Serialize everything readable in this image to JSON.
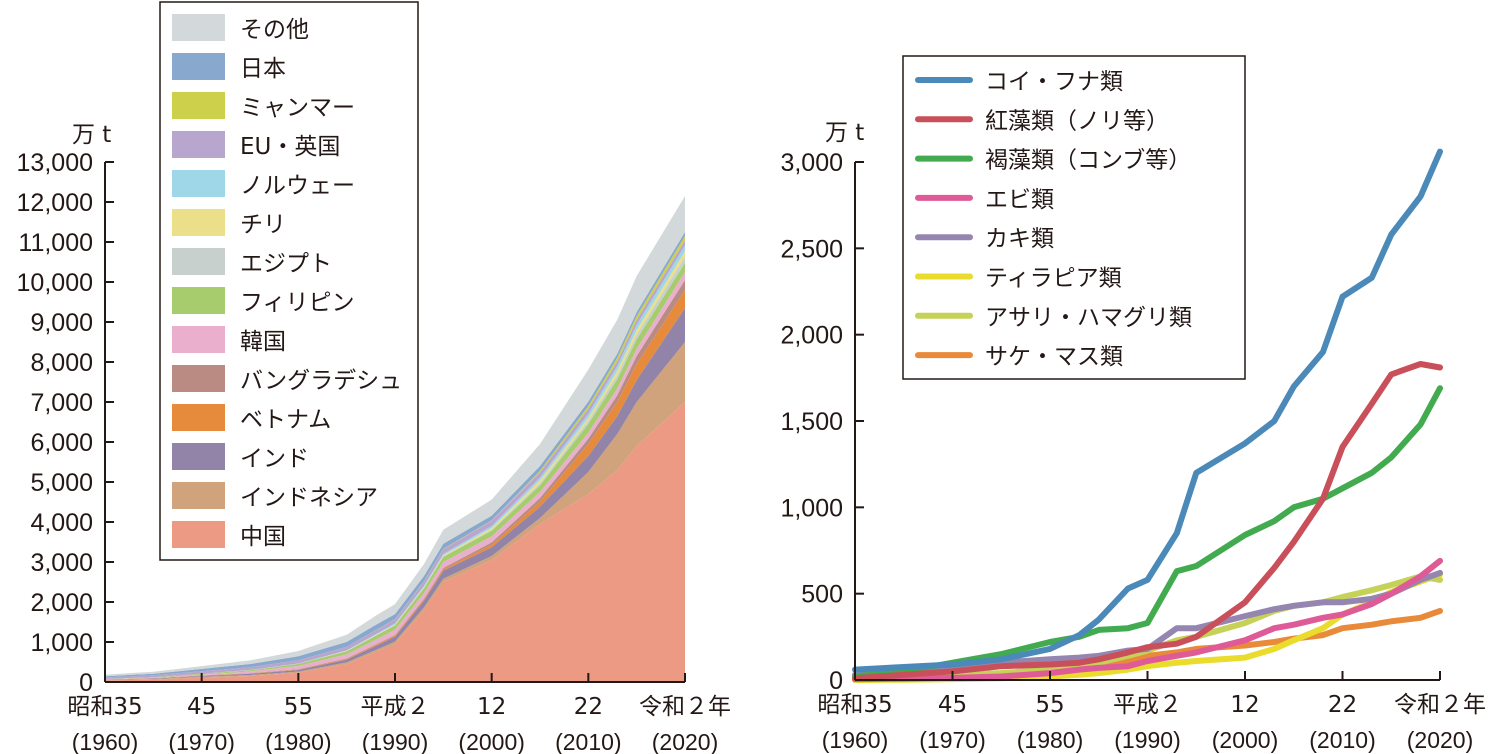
{
  "chart_data": [
    {
      "type": "area",
      "stacked": true,
      "title": "",
      "xlabel": "",
      "ylabel": "万 t",
      "unit_label": "万 t",
      "ylim": [
        0,
        13000
      ],
      "y_ticks": [
        "0",
        "1,000",
        "2,000",
        "3,000",
        "4,000",
        "5,000",
        "6,000",
        "7,000",
        "8,000",
        "9,000",
        "10,000",
        "11,000",
        "12,000",
        "13,000"
      ],
      "x_ticks": [
        {
          "era": "昭和35",
          "year": "(1960)"
        },
        {
          "era": "45",
          "year": "(1970)"
        },
        {
          "era": "55",
          "year": "(1980)"
        },
        {
          "era": "平成２",
          "year": "(1990)"
        },
        {
          "era": "12",
          "year": "(2000)"
        },
        {
          "era": "22",
          "year": "(2010)"
        },
        {
          "era": "令和２年",
          "year": "(2020)"
        }
      ],
      "x": [
        1960,
        1965,
        1970,
        1975,
        1980,
        1985,
        1988,
        1990,
        1993,
        1995,
        2000,
        2005,
        2010,
        2013,
        2015,
        2020
      ],
      "legend_position": "upper-left (inside)",
      "series": [
        {
          "name": "中国",
          "color": "#ec9a84",
          "values": [
            40,
            60,
            110,
            150,
            230,
            450,
            750,
            950,
            1800,
            2500,
            3050,
            3950,
            4700,
            5300,
            5900,
            7000
          ]
        },
        {
          "name": "インドネシア",
          "color": "#d0a37c",
          "values": [
            10,
            15,
            20,
            25,
            30,
            40,
            50,
            60,
            70,
            80,
            100,
            150,
            550,
            900,
            1100,
            1500
          ]
        },
        {
          "name": "インド",
          "color": "#9283a9",
          "values": [
            8,
            12,
            20,
            30,
            40,
            70,
            100,
            120,
            160,
            200,
            220,
            280,
            400,
            450,
            550,
            850
          ]
        },
        {
          "name": "ベトナム",
          "color": "#e68a3c",
          "values": [
            2,
            4,
            6,
            8,
            10,
            15,
            20,
            25,
            30,
            40,
            60,
            130,
            300,
            350,
            400,
            450
          ]
        },
        {
          "name": "バングラデシュ",
          "color": "#b98b82",
          "values": [
            5,
            6,
            8,
            10,
            12,
            15,
            18,
            20,
            25,
            30,
            60,
            90,
            130,
            170,
            200,
            250
          ]
        },
        {
          "name": "韓国",
          "color": "#e9afcd",
          "values": [
            5,
            10,
            20,
            40,
            80,
            100,
            120,
            130,
            140,
            150,
            150,
            150,
            150,
            170,
            180,
            200
          ]
        },
        {
          "name": "フィリピン",
          "color": "#a7cc6e",
          "values": [
            5,
            10,
            20,
            30,
            50,
            80,
            100,
            110,
            120,
            130,
            140,
            170,
            220,
            230,
            240,
            230
          ]
        },
        {
          "name": "エジプト",
          "color": "#c7d0cc",
          "values": [
            1,
            1,
            2,
            3,
            4,
            5,
            6,
            7,
            8,
            10,
            30,
            50,
            80,
            100,
            110,
            150
          ]
        },
        {
          "name": "チリ",
          "color": "#ebdf8a",
          "values": [
            0,
            0,
            0,
            1,
            2,
            5,
            10,
            15,
            20,
            25,
            40,
            70,
            70,
            110,
            120,
            140
          ]
        },
        {
          "name": "ノルウェー",
          "color": "#9fd6e8",
          "values": [
            0,
            0,
            1,
            2,
            5,
            10,
            20,
            25,
            30,
            35,
            50,
            70,
            100,
            120,
            130,
            150
          ]
        },
        {
          "name": "EU・英国",
          "color": "#b9a6cf",
          "values": [
            40,
            50,
            60,
            70,
            80,
            90,
            100,
            100,
            110,
            120,
            130,
            130,
            130,
            120,
            120,
            120
          ]
        },
        {
          "name": "ミャンマー",
          "color": "#cdd04a",
          "values": [
            0,
            0,
            0,
            1,
            2,
            3,
            4,
            5,
            6,
            8,
            10,
            40,
            70,
            90,
            100,
            110
          ]
        },
        {
          "name": "日本",
          "color": "#88a9cd",
          "values": [
            30,
            40,
            60,
            80,
            100,
            120,
            130,
            130,
            130,
            130,
            120,
            120,
            110,
            100,
            100,
            100
          ]
        },
        {
          "name": "その他",
          "color": "#d3d8da",
          "values": [
            40,
            50,
            70,
            90,
            130,
            180,
            230,
            250,
            300,
            350,
            400,
            550,
            800,
            850,
            900,
            900
          ]
        }
      ]
    },
    {
      "type": "line",
      "title": "",
      "xlabel": "",
      "ylabel": "万 t",
      "unit_label": "万 t",
      "ylim": [
        0,
        3000
      ],
      "y_ticks": [
        "0",
        "500",
        "1,000",
        "1,500",
        "2,000",
        "2,500",
        "3,000"
      ],
      "x_ticks": [
        {
          "era": "昭和35",
          "year": "(1960)"
        },
        {
          "era": "45",
          "year": "(1970)"
        },
        {
          "era": "55",
          "year": "(1980)"
        },
        {
          "era": "平成２",
          "year": "(1990)"
        },
        {
          "era": "12",
          "year": "(2000)"
        },
        {
          "era": "22",
          "year": "(2010)"
        },
        {
          "era": "令和２年",
          "year": "(2020)"
        }
      ],
      "x": [
        1960,
        1965,
        1970,
        1975,
        1980,
        1983,
        1985,
        1988,
        1990,
        1993,
        1995,
        2000,
        2003,
        2005,
        2008,
        2010,
        2013,
        2015,
        2018,
        2020
      ],
      "legend_position": "upper-left (inside)",
      "series": [
        {
          "name": "コイ・フナ類",
          "color": "#4a89b8",
          "values": [
            60,
            75,
            90,
            120,
            180,
            260,
            350,
            530,
            580,
            850,
            1200,
            1370,
            1500,
            1700,
            1900,
            2220,
            2330,
            2580,
            2800,
            3060
          ]
        },
        {
          "name": "紅藻類（ノリ等）",
          "color": "#c9505a",
          "values": [
            10,
            30,
            50,
            80,
            90,
            100,
            120,
            160,
            190,
            210,
            250,
            450,
            650,
            800,
            1050,
            1350,
            1600,
            1770,
            1830,
            1810
          ]
        },
        {
          "name": "褐藻類（コンブ等）",
          "color": "#42aa4f",
          "values": [
            20,
            50,
            100,
            150,
            220,
            250,
            290,
            300,
            330,
            630,
            660,
            840,
            920,
            1000,
            1050,
            1110,
            1200,
            1290,
            1480,
            1690
          ]
        },
        {
          "name": "エビ類",
          "color": "#de5b97",
          "values": [
            5,
            8,
            12,
            20,
            40,
            60,
            70,
            80,
            110,
            140,
            160,
            230,
            300,
            320,
            360,
            380,
            440,
            500,
            600,
            690
          ]
        },
        {
          "name": "カキ類",
          "color": "#9586b1",
          "values": [
            30,
            60,
            80,
            100,
            120,
            130,
            140,
            170,
            180,
            300,
            300,
            370,
            410,
            430,
            450,
            450,
            470,
            500,
            580,
            620
          ]
        },
        {
          "name": "ティラピア類",
          "color": "#eadc2c",
          "values": [
            0,
            2,
            5,
            10,
            20,
            30,
            40,
            60,
            80,
            100,
            110,
            130,
            180,
            230,
            300,
            380,
            450,
            510,
            570,
            610
          ]
        },
        {
          "name": "アサリ・ハマグリ類",
          "color": "#c5d157",
          "values": [
            10,
            20,
            30,
            40,
            60,
            80,
            100,
            140,
            170,
            230,
            250,
            330,
            400,
            430,
            450,
            480,
            520,
            550,
            600,
            580
          ]
        },
        {
          "name": "サケ・マス類",
          "color": "#e88a3a",
          "values": [
            0,
            5,
            10,
            20,
            40,
            60,
            80,
            110,
            140,
            160,
            180,
            200,
            220,
            240,
            260,
            300,
            320,
            340,
            360,
            400
          ]
        }
      ]
    }
  ],
  "left_chart": {
    "unit_label": "万 t",
    "legend": [
      "その他",
      "日本",
      "ミャンマー",
      "EU・英国",
      "ノルウェー",
      "チリ",
      "エジプト",
      "フィリピン",
      "韓国",
      "バングラデシュ",
      "ベトナム",
      "インド",
      "インドネシア",
      "中国"
    ]
  },
  "right_chart": {
    "unit_label": "万 t",
    "legend": [
      "コイ・フナ類",
      "紅藻類（ノリ等）",
      "褐藻類（コンブ等）",
      "エビ類",
      "カキ類",
      "ティラピア類",
      "アサリ・ハマグリ類",
      "サケ・マス類"
    ]
  }
}
